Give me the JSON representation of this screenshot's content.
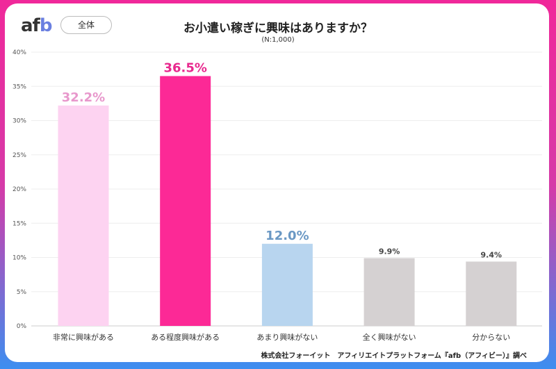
{
  "brand": {
    "logo": "afb",
    "filter_label": "全体"
  },
  "chart_data": {
    "type": "bar",
    "title": "お小遣い稼ぎに興味はありますか？",
    "subtitle": "(N:1,000)",
    "categories": [
      "非常に興味がある",
      "ある程度興味がある",
      "あまり興味がない",
      "全く興味がない",
      "分からない"
    ],
    "values": [
      32.2,
      36.5,
      12.0,
      9.9,
      9.4
    ],
    "data_labels": [
      "32.2%",
      "36.5%",
      "12.0%",
      "9.9%",
      "9.4%"
    ],
    "colors": [
      "#fdd3f1",
      "#fc2996",
      "#b8d5ef",
      "#d5d1d2",
      "#d5d1d2"
    ],
    "label_colors": [
      "#e898cc",
      "#e8298e",
      "#6a98c4",
      "#444444",
      "#444444"
    ],
    "ylim": [
      0,
      40
    ],
    "yticks": [
      "0%",
      "5%",
      "10%",
      "15%",
      "20%",
      "25%",
      "30%",
      "35%",
      "40%"
    ],
    "grid": true
  },
  "footer": {
    "source": "株式会社フォーイット　アフィリエイトプラットフォーム『afb（アフィビー）』調べ"
  }
}
